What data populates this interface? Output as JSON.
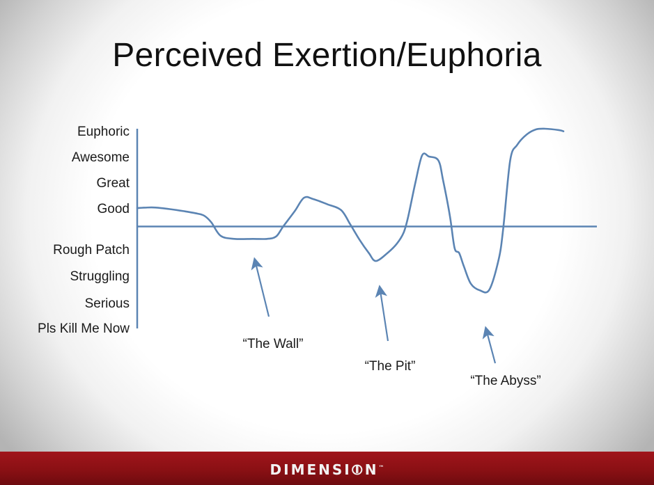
{
  "slide": {
    "title": "Perceived Exertion/Euphoria"
  },
  "colors": {
    "line": "#5b84b3",
    "footer": "#8a1014",
    "text": "#1a1a1a"
  },
  "chart_data": {
    "type": "line",
    "title": "Perceived Exertion/Euphoria",
    "xlabel": "",
    "ylabel": "",
    "y_categories": [
      "Euphoric",
      "Awesome",
      "Great",
      "Good",
      "Rough Patch",
      "Struggling",
      "Serious",
      "Pls Kill Me Now"
    ],
    "y_scale": {
      "top": 8,
      "bottom": 0,
      "baseline": 4.1
    },
    "grid": false,
    "series": [
      {
        "points": [
          [
            0,
            5.0
          ],
          [
            2,
            5.02
          ],
          [
            4,
            5.02
          ],
          [
            7,
            4.95
          ],
          [
            10,
            4.85
          ],
          [
            13,
            4.73
          ],
          [
            14.5,
            4.62
          ],
          [
            16,
            4.3
          ],
          [
            18,
            3.65
          ],
          [
            21,
            3.5
          ],
          [
            25,
            3.5
          ],
          [
            28,
            3.5
          ],
          [
            30,
            3.62
          ],
          [
            31.5,
            4.1
          ],
          [
            34,
            4.85
          ],
          [
            36,
            5.4
          ],
          [
            38,
            5.35
          ],
          [
            41,
            5.15
          ],
          [
            44,
            4.9
          ],
          [
            46,
            4.2
          ],
          [
            48,
            3.45
          ],
          [
            50,
            2.85
          ],
          [
            51.5,
            2.55
          ],
          [
            54,
            2.85
          ],
          [
            56,
            3.25
          ],
          [
            57.5,
            3.8
          ],
          [
            58.5,
            4.6
          ],
          [
            60,
            5.95
          ],
          [
            61.5,
            7.05
          ],
          [
            63,
            7.0
          ],
          [
            65,
            6.85
          ],
          [
            66,
            6.1
          ],
          [
            67.5,
            4.6
          ],
          [
            68.5,
            3.05
          ],
          [
            69.5,
            2.85
          ],
          [
            70.5,
            2.35
          ],
          [
            72,
            1.7
          ],
          [
            74,
            1.45
          ],
          [
            76,
            1.48
          ],
          [
            78,
            2.6
          ],
          [
            79,
            4.0
          ],
          [
            80.5,
            6.85
          ],
          [
            82,
            7.45
          ],
          [
            84,
            7.85
          ],
          [
            86,
            8.05
          ],
          [
            88,
            8.08
          ],
          [
            91,
            8.03
          ],
          [
            92,
            7.98
          ]
        ]
      }
    ],
    "annotations": [
      {
        "label": "“The Wall”",
        "x": 26,
        "y": 3.5
      },
      {
        "label": "“The Pit”",
        "x": 53,
        "y": 2.55
      },
      {
        "label": "“The Abyss”",
        "x": 75,
        "y": 1.45
      }
    ]
  },
  "footer": {
    "logo_text": "DIMENSI⦷N",
    "logo_tm": "™"
  }
}
